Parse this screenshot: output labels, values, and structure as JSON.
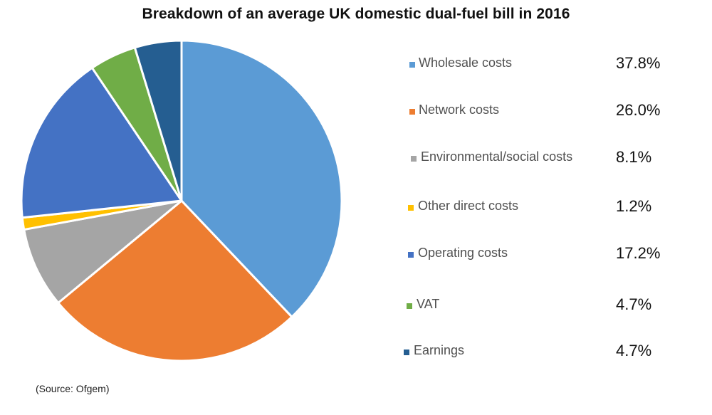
{
  "title": "Breakdown of an average UK domestic dual-fuel bill in 2016",
  "source": "(Source: Ofgem)",
  "legend": [
    {
      "label": "Wholesale costs",
      "value": "37.8%",
      "color": "#5B9BD5"
    },
    {
      "label": "Network costs",
      "value": "26.0%",
      "color": "#ED7D31"
    },
    {
      "label": "Environmental/social costs",
      "value": "8.1%",
      "color": "#A5A5A5"
    },
    {
      "label": "Other direct costs",
      "value": "1.2%",
      "color": "#FFC000"
    },
    {
      "label": "Operating costs",
      "value": "17.2%",
      "color": "#4472C4"
    },
    {
      "label": "VAT",
      "value": "4.7%",
      "color": "#70AD47"
    },
    {
      "label": "Earnings",
      "value": "4.7%",
      "color": "#255E91"
    }
  ],
  "chart_data": {
    "type": "pie",
    "title": "Breakdown of an average UK domestic dual-fuel bill in 2016",
    "categories": [
      "Wholesale costs",
      "Network costs",
      "Environmental/social costs",
      "Other direct costs",
      "Operating costs",
      "VAT",
      "Earnings"
    ],
    "values": [
      37.8,
      26.0,
      8.1,
      1.2,
      17.2,
      4.7,
      4.7
    ],
    "unit": "%",
    "colors": [
      "#5B9BD5",
      "#ED7D31",
      "#A5A5A5",
      "#FFC000",
      "#4472C4",
      "#70AD47",
      "#255E91"
    ],
    "legend_position": "right",
    "annotation": "(Source: Ofgem)"
  }
}
